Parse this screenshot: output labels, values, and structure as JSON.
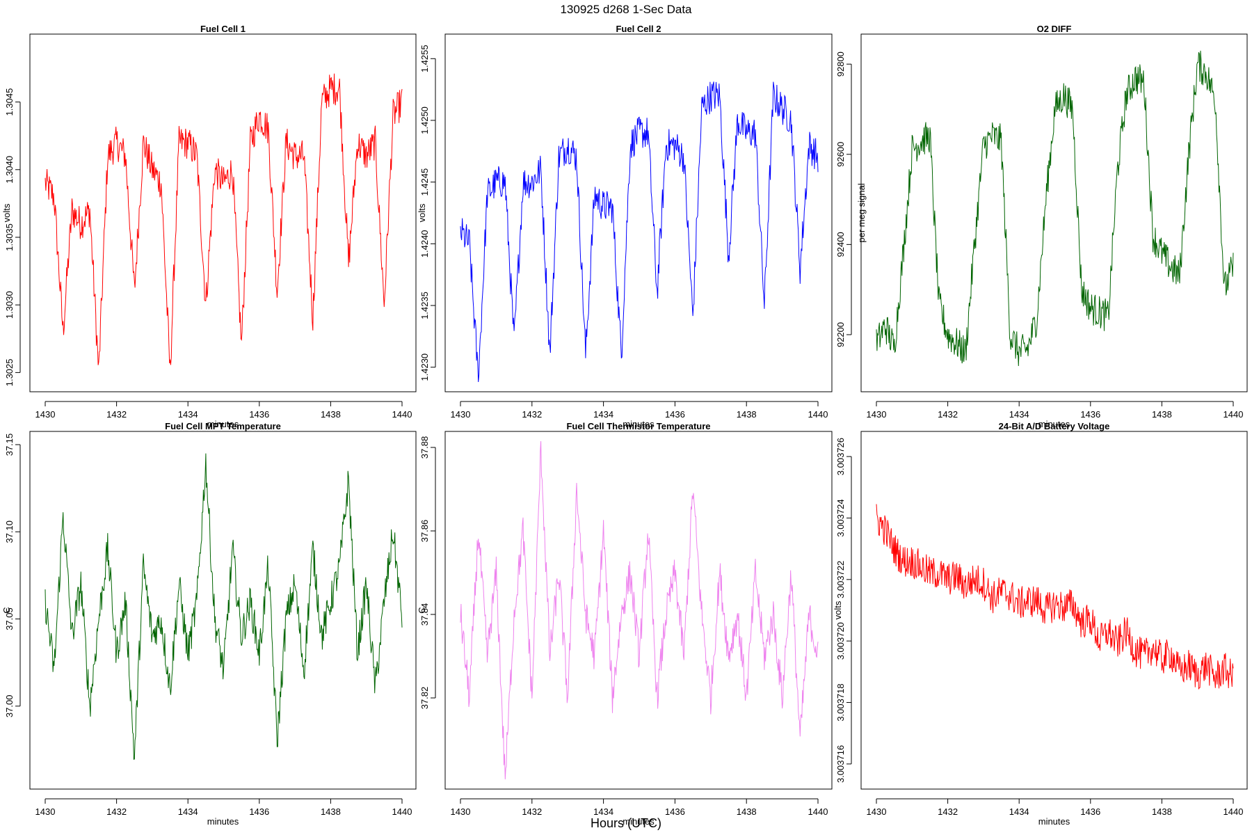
{
  "page_title": "130925   d268   1-Sec Data",
  "bottom_label": "Hours (UTC)",
  "chart_data": [
    {
      "type": "line",
      "title": "Fuel Cell 1",
      "xlabel": "minutes",
      "ylabel": "volts",
      "color": "#ff0000",
      "xlim": [
        1430,
        1440
      ],
      "ylim": [
        1.30243,
        1.30493
      ],
      "x_ticks": [
        "1430",
        "1432",
        "1434",
        "1436",
        "1438",
        "1440"
      ],
      "y_ticks": [
        "1.3025",
        "1.3030",
        "1.3035",
        "1.3040",
        "1.3045"
      ],
      "x": [
        1430.0,
        1430.25,
        1430.5,
        1430.75,
        1431.0,
        1431.25,
        1431.5,
        1431.75,
        1432.0,
        1432.25,
        1432.5,
        1432.75,
        1433.0,
        1433.25,
        1433.5,
        1433.75,
        1434.0,
        1434.25,
        1434.5,
        1434.75,
        1435.0,
        1435.25,
        1435.5,
        1435.75,
        1436.0,
        1436.25,
        1436.5,
        1436.75,
        1437.0,
        1437.25,
        1437.5,
        1437.75,
        1438.0,
        1438.25,
        1438.5,
        1438.75,
        1439.0,
        1439.25,
        1439.5,
        1439.75,
        1440.0
      ],
      "values": [
        1.3039,
        1.3038,
        1.3028,
        1.3037,
        1.3036,
        1.3037,
        1.3025,
        1.3041,
        1.3042,
        1.3041,
        1.3031,
        1.3042,
        1.304,
        1.3039,
        1.3025,
        1.3042,
        1.3042,
        1.3041,
        1.303,
        1.304,
        1.3039,
        1.304,
        1.3027,
        1.3042,
        1.3044,
        1.3043,
        1.3031,
        1.3042,
        1.3041,
        1.3041,
        1.3029,
        1.3045,
        1.3046,
        1.3046,
        1.3033,
        1.3042,
        1.3041,
        1.3042,
        1.303,
        1.3044,
        1.3045
      ]
    },
    {
      "type": "line",
      "title": "Fuel Cell 2",
      "xlabel": "minutes",
      "ylabel": "volts",
      "color": "#0000ff",
      "xlim": [
        1430,
        1440
      ],
      "ylim": [
        1.42288,
        1.42562
      ],
      "x_ticks": [
        "1430",
        "1432",
        "1434",
        "1436",
        "1438",
        "1440"
      ],
      "y_ticks": [
        "1.4230",
        "1.4235",
        "1.4240",
        "1.4245",
        "1.4250",
        "1.4255"
      ],
      "x": [
        1430.0,
        1430.25,
        1430.5,
        1430.75,
        1431.0,
        1431.25,
        1431.5,
        1431.75,
        1432.0,
        1432.25,
        1432.5,
        1432.75,
        1433.0,
        1433.25,
        1433.5,
        1433.75,
        1434.0,
        1434.25,
        1434.5,
        1434.75,
        1435.0,
        1435.25,
        1435.5,
        1435.75,
        1436.0,
        1436.25,
        1436.5,
        1436.75,
        1437.0,
        1437.25,
        1437.5,
        1437.75,
        1438.0,
        1438.25,
        1438.5,
        1438.75,
        1439.0,
        1439.25,
        1439.5,
        1439.75,
        1440.0
      ],
      "values": [
        1.4241,
        1.424,
        1.4229,
        1.4244,
        1.4245,
        1.4245,
        1.4232,
        1.4245,
        1.4245,
        1.4246,
        1.4231,
        1.4247,
        1.4248,
        1.4247,
        1.4231,
        1.4244,
        1.4243,
        1.4243,
        1.4231,
        1.4248,
        1.4249,
        1.4249,
        1.4236,
        1.4248,
        1.4248,
        1.4247,
        1.4234,
        1.4251,
        1.4252,
        1.4252,
        1.4239,
        1.425,
        1.4249,
        1.4249,
        1.4235,
        1.4252,
        1.4251,
        1.425,
        1.4238,
        1.4248,
        1.4247
      ]
    },
    {
      "type": "line",
      "title": "O2 DIFF",
      "xlabel": "minutes",
      "ylabel": "per meg signal",
      "color": "#006400",
      "xlim": [
        1430,
        1440
      ],
      "ylim": [
        92095,
        92845
      ],
      "x_ticks": [
        "1430",
        "1432",
        "1434",
        "1436",
        "1438",
        "1440"
      ],
      "y_ticks": [
        "92200",
        "92400",
        "92600",
        "92800"
      ],
      "x": [
        1430.0,
        1430.25,
        1430.5,
        1430.75,
        1431.0,
        1431.25,
        1431.5,
        1431.75,
        1432.0,
        1432.25,
        1432.5,
        1432.75,
        1433.0,
        1433.25,
        1433.5,
        1433.75,
        1434.0,
        1434.25,
        1434.5,
        1434.75,
        1435.0,
        1435.25,
        1435.5,
        1435.75,
        1436.0,
        1436.25,
        1436.5,
        1436.75,
        1437.0,
        1437.25,
        1437.5,
        1437.75,
        1438.0,
        1438.25,
        1438.5,
        1438.75,
        1439.0,
        1439.25,
        1439.5,
        1439.75,
        1440.0
      ],
      "values": [
        92180,
        92220,
        92170,
        92380,
        92610,
        92630,
        92640,
        92270,
        92200,
        92180,
        92160,
        92400,
        92620,
        92640,
        92630,
        92200,
        92160,
        92170,
        92240,
        92500,
        92700,
        92730,
        92700,
        92300,
        92260,
        92250,
        92240,
        92560,
        92730,
        92770,
        92760,
        92420,
        92380,
        92350,
        92330,
        92600,
        92800,
        92780,
        92720,
        92300,
        92350
      ]
    },
    {
      "type": "line",
      "title": "Fuel Cell MPT Temperature",
      "xlabel": "minutes",
      "ylabel": "C",
      "color": "#006400",
      "xlim": [
        1430,
        1440
      ],
      "ylim": [
        36.958,
        37.152
      ],
      "x_ticks": [
        "1430",
        "1432",
        "1434",
        "1436",
        "1438",
        "1440"
      ],
      "y_ticks": [
        "37.00",
        "37.05",
        "37.10",
        "37.15"
      ],
      "x": [
        1430.0,
        1430.25,
        1430.5,
        1430.75,
        1431.0,
        1431.25,
        1431.5,
        1431.75,
        1432.0,
        1432.25,
        1432.5,
        1432.75,
        1433.0,
        1433.25,
        1433.5,
        1433.75,
        1434.0,
        1434.25,
        1434.5,
        1434.75,
        1435.0,
        1435.25,
        1435.5,
        1435.75,
        1436.0,
        1436.25,
        1436.5,
        1436.75,
        1437.0,
        1437.25,
        1437.5,
        1437.75,
        1438.0,
        1438.25,
        1438.5,
        1438.75,
        1439.0,
        1439.25,
        1439.5,
        1439.75,
        1440.0
      ],
      "values": [
        37.06,
        37.02,
        37.11,
        37.04,
        37.07,
        37.0,
        37.05,
        37.09,
        37.03,
        37.06,
        36.97,
        37.08,
        37.04,
        37.05,
        37.01,
        37.07,
        37.03,
        37.06,
        37.14,
        37.05,
        37.02,
        37.09,
        37.04,
        37.06,
        37.03,
        37.08,
        36.98,
        37.05,
        37.07,
        37.02,
        37.09,
        37.04,
        37.06,
        37.08,
        37.13,
        37.03,
        37.07,
        37.01,
        37.06,
        37.1,
        37.05
      ]
    },
    {
      "type": "line",
      "title": "Fuel Cell Thermistor Temperature",
      "xlabel": "minutes",
      "ylabel": "C",
      "color": "#ee82ee",
      "xlim": [
        1430,
        1440
      ],
      "ylim": [
        37.8005,
        37.8815
      ],
      "x_ticks": [
        "1430",
        "1432",
        "1434",
        "1436",
        "1438",
        "1440"
      ],
      "y_ticks": [
        "37.82",
        "37.84",
        "37.86",
        "37.88"
      ],
      "x": [
        1430.0,
        1430.25,
        1430.5,
        1430.75,
        1431.0,
        1431.25,
        1431.5,
        1431.75,
        1432.0,
        1432.25,
        1432.5,
        1432.75,
        1433.0,
        1433.25,
        1433.5,
        1433.75,
        1434.0,
        1434.25,
        1434.5,
        1434.75,
        1435.0,
        1435.25,
        1435.5,
        1435.75,
        1436.0,
        1436.25,
        1436.5,
        1436.75,
        1437.0,
        1437.25,
        1437.5,
        1437.75,
        1438.0,
        1438.25,
        1438.5,
        1438.75,
        1439.0,
        1439.25,
        1439.5,
        1439.75,
        1440.0
      ],
      "values": [
        37.84,
        37.82,
        37.86,
        37.83,
        37.85,
        37.8,
        37.84,
        37.86,
        37.82,
        37.88,
        37.83,
        37.85,
        37.82,
        37.87,
        37.84,
        37.83,
        37.86,
        37.82,
        37.84,
        37.85,
        37.83,
        37.86,
        37.82,
        37.84,
        37.85,
        37.83,
        37.87,
        37.84,
        37.82,
        37.85,
        37.83,
        37.84,
        37.82,
        37.85,
        37.83,
        37.84,
        37.82,
        37.85,
        37.81,
        37.84,
        37.83
      ]
    },
    {
      "type": "line",
      "title": "24-Bit A/D Battery Voltage",
      "xlabel": "minutes",
      "ylabel": "volts",
      "color": "#ff0000",
      "xlim": [
        1430,
        1440
      ],
      "ylim": [
        3.0037155,
        3.0037265
      ],
      "x_ticks": [
        "1430",
        "1432",
        "1434",
        "1436",
        "1438",
        "1440"
      ],
      "y_ticks": [
        "3.003716",
        "3.003718",
        "3.003720",
        "3.003722",
        "3.003724",
        "3.003726"
      ],
      "x": [
        1430.0,
        1430.25,
        1430.5,
        1430.75,
        1431.0,
        1431.25,
        1431.5,
        1431.75,
        1432.0,
        1432.25,
        1432.5,
        1432.75,
        1433.0,
        1433.25,
        1433.5,
        1433.75,
        1434.0,
        1434.25,
        1434.5,
        1434.75,
        1435.0,
        1435.25,
        1435.5,
        1435.75,
        1436.0,
        1436.25,
        1436.5,
        1436.75,
        1437.0,
        1437.25,
        1437.5,
        1437.75,
        1438.0,
        1438.25,
        1438.5,
        1438.75,
        1439.0,
        1439.25,
        1439.5,
        1439.75,
        1440.0
      ],
      "values": [
        3.003724,
        3.0037236,
        3.003723,
        3.0037226,
        3.0037226,
        3.0037224,
        3.0037222,
        3.0037222,
        3.003722,
        3.0037221,
        3.0037218,
        3.003722,
        3.0037219,
        3.0037214,
        3.0037216,
        3.0037215,
        3.0037212,
        3.0037213,
        3.0037213,
        3.003721,
        3.0037212,
        3.0037211,
        3.0037212,
        3.0037206,
        3.0037207,
        3.00372,
        3.0037203,
        3.0037199,
        3.0037203,
        3.0037197,
        3.0037195,
        3.0037198,
        3.0037194,
        3.0037196,
        3.003719,
        3.0037192,
        3.0037189,
        3.0037192,
        3.0037188,
        3.0037191,
        3.0037188
      ]
    }
  ]
}
